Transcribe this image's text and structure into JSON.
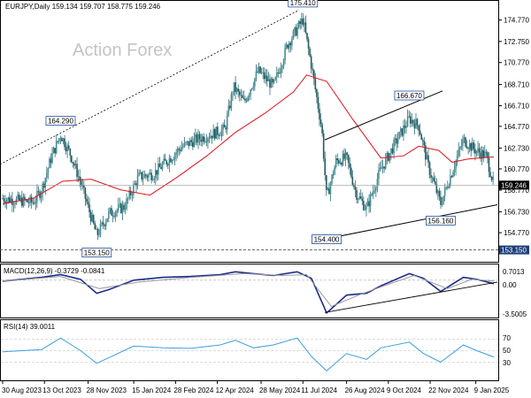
{
  "window": {
    "symbol_header": "EURJPY,Daily  159.134 159.707 158.775 159.246",
    "watermark": "Action Forex"
  },
  "chart_data": [
    {
      "type": "candlestick",
      "title": "EURJPY,Daily",
      "ohlc_header": {
        "open": 159.134,
        "high": 159.707,
        "low": 158.775,
        "close": 159.246
      },
      "indicators": [
        "SMA 55 (red)"
      ],
      "ylim": [
        152.2,
        176.4
      ],
      "y_ticks": [
        "174.770",
        "172.750",
        "170.770",
        "168.710",
        "166.710",
        "164.770",
        "162.730",
        "160.770",
        "158.770",
        "156.730",
        "154.770"
      ],
      "price_tag": "159.246",
      "support_tag": "153.150",
      "x_labels": [
        "30 Aug 2023",
        "13 Oct 2023",
        "28 Nov 2023",
        "15 Jan 2024",
        "28 Feb 2024",
        "12 Apr 2024",
        "28 May 2024",
        "11 Jul 2024",
        "26 Aug 2024",
        "9 Oct 2024",
        "22 Nov 2024",
        "9 Jan 2025"
      ],
      "annotations": [
        {
          "text": "175.410",
          "value": 175.41,
          "date": "2024-07-11"
        },
        {
          "text": "164.290",
          "value": 164.29,
          "date": "2023-10-30"
        },
        {
          "text": "153.150",
          "value": 153.15,
          "date": "2023-12-07"
        },
        {
          "text": "154.400",
          "value": 154.4,
          "date": "2024-08-05"
        },
        {
          "text": "166.670",
          "value": 166.67,
          "date": "2024-10-31"
        },
        {
          "text": "156.160",
          "value": 156.16,
          "date": "2024-12-03"
        }
      ],
      "close_series": [
        {
          "x": "2023-08-30",
          "y": 158.0
        },
        {
          "x": "2023-09-15",
          "y": 157.8
        },
        {
          "x": "2023-10-01",
          "y": 157.6
        },
        {
          "x": "2023-10-10",
          "y": 158.8
        },
        {
          "x": "2023-10-20",
          "y": 161.8
        },
        {
          "x": "2023-10-30",
          "y": 164.0
        },
        {
          "x": "2023-11-10",
          "y": 162.0
        },
        {
          "x": "2023-11-20",
          "y": 159.5
        },
        {
          "x": "2023-12-07",
          "y": 154.5
        },
        {
          "x": "2023-12-20",
          "y": 156.6
        },
        {
          "x": "2024-01-05",
          "y": 157.2
        },
        {
          "x": "2024-01-20",
          "y": 160.0
        },
        {
          "x": "2024-02-05",
          "y": 160.3
        },
        {
          "x": "2024-02-20",
          "y": 161.6
        },
        {
          "x": "2024-03-05",
          "y": 162.8
        },
        {
          "x": "2024-03-20",
          "y": 163.5
        },
        {
          "x": "2024-04-05",
          "y": 164.0
        },
        {
          "x": "2024-04-20",
          "y": 164.5
        },
        {
          "x": "2024-04-29",
          "y": 168.5
        },
        {
          "x": "2024-05-10",
          "y": 167.0
        },
        {
          "x": "2024-05-25",
          "y": 170.0
        },
        {
          "x": "2024-06-10",
          "y": 168.5
        },
        {
          "x": "2024-06-25",
          "y": 172.5
        },
        {
          "x": "2024-07-11",
          "y": 174.8
        },
        {
          "x": "2024-07-20",
          "y": 170.5
        },
        {
          "x": "2024-07-31",
          "y": 164.5
        },
        {
          "x": "2024-08-05",
          "y": 158.0
        },
        {
          "x": "2024-08-15",
          "y": 161.5
        },
        {
          "x": "2024-08-26",
          "y": 161.8
        },
        {
          "x": "2024-09-05",
          "y": 158.5
        },
        {
          "x": "2024-09-16",
          "y": 157.0
        },
        {
          "x": "2024-09-30",
          "y": 160.5
        },
        {
          "x": "2024-10-15",
          "y": 163.0
        },
        {
          "x": "2024-10-31",
          "y": 165.5
        },
        {
          "x": "2024-11-10",
          "y": 164.8
        },
        {
          "x": "2024-11-20",
          "y": 161.0
        },
        {
          "x": "2024-12-03",
          "y": 157.5
        },
        {
          "x": "2024-12-15",
          "y": 160.5
        },
        {
          "x": "2024-12-27",
          "y": 163.5
        },
        {
          "x": "2025-01-09",
          "y": 162.5
        },
        {
          "x": "2025-01-20",
          "y": 162.0
        },
        {
          "x": "2025-01-28",
          "y": 159.25
        }
      ],
      "sma55_series": [
        {
          "x": "2023-08-30",
          "y": 157.5
        },
        {
          "x": "2023-10-01",
          "y": 158.0
        },
        {
          "x": "2023-11-01",
          "y": 159.6
        },
        {
          "x": "2023-12-01",
          "y": 159.8
        },
        {
          "x": "2024-01-01",
          "y": 158.8
        },
        {
          "x": "2024-02-01",
          "y": 158.3
        },
        {
          "x": "2024-03-01",
          "y": 160.0
        },
        {
          "x": "2024-04-01",
          "y": 162.0
        },
        {
          "x": "2024-05-01",
          "y": 164.2
        },
        {
          "x": "2024-06-01",
          "y": 166.0
        },
        {
          "x": "2024-07-01",
          "y": 168.0
        },
        {
          "x": "2024-07-15",
          "y": 169.6
        },
        {
          "x": "2024-08-05",
          "y": 169.0
        },
        {
          "x": "2024-09-01",
          "y": 165.5
        },
        {
          "x": "2024-10-01",
          "y": 161.8
        },
        {
          "x": "2024-10-25",
          "y": 162.0
        },
        {
          "x": "2024-11-10",
          "y": 162.9
        },
        {
          "x": "2024-12-01",
          "y": 162.5
        },
        {
          "x": "2024-12-15",
          "y": 161.4
        },
        {
          "x": "2025-01-01",
          "y": 161.7
        },
        {
          "x": "2025-01-28",
          "y": 161.9
        }
      ]
    },
    {
      "type": "line",
      "title": "MACD(12,26,9) -0.3729 -0.0841",
      "ylim": [
        -3.8,
        1.4
      ],
      "y_ticks": [
        "0.7013",
        "0.00",
        "-3.5005"
      ],
      "series": [
        {
          "name": "MACD",
          "values": [
            {
              "x": "2023-08-30",
              "y": -0.1
            },
            {
              "x": "2023-10-10",
              "y": 0.3
            },
            {
              "x": "2023-10-30",
              "y": 0.6
            },
            {
              "x": "2023-11-20",
              "y": 0.1
            },
            {
              "x": "2023-12-07",
              "y": -1.4
            },
            {
              "x": "2023-12-20",
              "y": -1.0
            },
            {
              "x": "2024-01-15",
              "y": 0.0
            },
            {
              "x": "2024-02-15",
              "y": 0.3
            },
            {
              "x": "2024-03-15",
              "y": 0.4
            },
            {
              "x": "2024-04-15",
              "y": 0.6
            },
            {
              "x": "2024-05-01",
              "y": 0.9
            },
            {
              "x": "2024-05-20",
              "y": 0.7
            },
            {
              "x": "2024-06-10",
              "y": 0.5
            },
            {
              "x": "2024-07-05",
              "y": 0.9
            },
            {
              "x": "2024-07-20",
              "y": 0.2
            },
            {
              "x": "2024-08-05",
              "y": -3.5
            },
            {
              "x": "2024-08-26",
              "y": -1.6
            },
            {
              "x": "2024-09-16",
              "y": -1.4
            },
            {
              "x": "2024-10-01",
              "y": -0.6
            },
            {
              "x": "2024-10-31",
              "y": 0.7
            },
            {
              "x": "2024-11-15",
              "y": 0.2
            },
            {
              "x": "2024-12-03",
              "y": -1.2
            },
            {
              "x": "2024-12-27",
              "y": 0.3
            },
            {
              "x": "2025-01-10",
              "y": 0.1
            },
            {
              "x": "2025-01-28",
              "y": -0.37
            }
          ]
        },
        {
          "name": "Signal",
          "values": [
            {
              "x": "2023-08-30",
              "y": -0.1
            },
            {
              "x": "2023-10-30",
              "y": 0.4
            },
            {
              "x": "2023-12-10",
              "y": -0.9
            },
            {
              "x": "2024-01-20",
              "y": -0.2
            },
            {
              "x": "2024-03-15",
              "y": 0.3
            },
            {
              "x": "2024-05-10",
              "y": 0.7
            },
            {
              "x": "2024-06-20",
              "y": 0.5
            },
            {
              "x": "2024-07-15",
              "y": 0.6
            },
            {
              "x": "2024-08-10",
              "y": -2.8
            },
            {
              "x": "2024-09-10",
              "y": -1.5
            },
            {
              "x": "2024-10-10",
              "y": -0.4
            },
            {
              "x": "2024-11-05",
              "y": 0.5
            },
            {
              "x": "2024-12-10",
              "y": -0.9
            },
            {
              "x": "2025-01-05",
              "y": 0.1
            },
            {
              "x": "2025-01-28",
              "y": -0.08
            }
          ]
        }
      ]
    },
    {
      "type": "line",
      "title": "RSI(14) 39.0011",
      "ylim": [
        0,
        100
      ],
      "y_ticks": [
        "70",
        "50",
        "30"
      ],
      "series": [
        {
          "name": "RSI",
          "values": [
            {
              "x": "2023-08-30",
              "y": 48
            },
            {
              "x": "2023-10-10",
              "y": 52
            },
            {
              "x": "2023-10-30",
              "y": 72
            },
            {
              "x": "2023-11-20",
              "y": 50
            },
            {
              "x": "2023-12-07",
              "y": 28
            },
            {
              "x": "2023-12-20",
              "y": 38
            },
            {
              "x": "2024-01-15",
              "y": 58
            },
            {
              "x": "2024-02-15",
              "y": 55
            },
            {
              "x": "2024-03-15",
              "y": 54
            },
            {
              "x": "2024-04-15",
              "y": 60
            },
            {
              "x": "2024-05-01",
              "y": 68
            },
            {
              "x": "2024-05-20",
              "y": 55
            },
            {
              "x": "2024-06-10",
              "y": 60
            },
            {
              "x": "2024-07-05",
              "y": 72
            },
            {
              "x": "2024-07-20",
              "y": 40
            },
            {
              "x": "2024-08-05",
              "y": 15
            },
            {
              "x": "2024-08-26",
              "y": 45
            },
            {
              "x": "2024-09-16",
              "y": 35
            },
            {
              "x": "2024-10-01",
              "y": 55
            },
            {
              "x": "2024-10-31",
              "y": 65
            },
            {
              "x": "2024-11-15",
              "y": 45
            },
            {
              "x": "2024-12-03",
              "y": 30
            },
            {
              "x": "2024-12-27",
              "y": 60
            },
            {
              "x": "2025-01-10",
              "y": 50
            },
            {
              "x": "2025-01-28",
              "y": 39
            }
          ]
        }
      ]
    }
  ]
}
